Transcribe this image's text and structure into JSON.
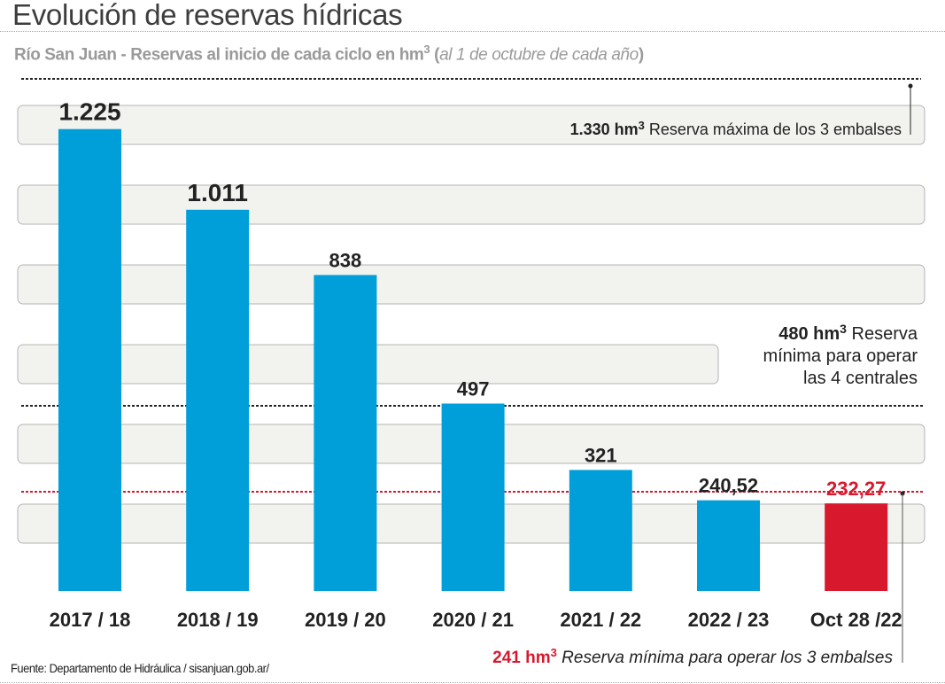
{
  "title": "Evolución de reservas hídricas",
  "subtitle": {
    "bold": "Río San Juan - Reservas al inicio de cada ciclo en hm",
    "sup": "3",
    "open": " (",
    "italic": "al 1 de octubre de cada año",
    "close": ")"
  },
  "footer": "Fuente: Departamento de Hidráulica / sisanjuan.gob.ar/",
  "colors": {
    "bar": "#009fda",
    "highlight": "#d8192d",
    "band": "#f2f2ef",
    "band_border": "#b4b4b4",
    "text": "#222222"
  },
  "chart_data": {
    "type": "bar",
    "title": "Evolución de reservas hídricas",
    "xlabel": "",
    "ylabel": "hm3",
    "ylim": [
      0,
      1330
    ],
    "categories": [
      "2017 / 18",
      "2018 / 19",
      "2019 / 20",
      "2020 / 21",
      "2021 / 22",
      "2022 / 23",
      "Oct 28 /22"
    ],
    "values": [
      1225,
      1011,
      838,
      497,
      321,
      240.52,
      232.27
    ],
    "value_labels": [
      "1.225",
      "1.011",
      "838",
      "497",
      "321",
      "240,52",
      "232,27"
    ],
    "highlight_index": 6,
    "reference_lines": [
      {
        "value": 1330,
        "label_bold": "1.330 hm",
        "sup": "3",
        "label": " Reserva máxima de los 3 embalses",
        "style": "dotted-black"
      },
      {
        "value": 480,
        "label_bold": "480 hm",
        "sup": "3",
        "label_lines": [
          " Reserva",
          "mínima para operar",
          "las 4 centrales"
        ],
        "style": "dotted-black"
      },
      {
        "value": 241,
        "label_bold": "241 hm",
        "sup": "3",
        "label": " Reserva mínima para operar los 3 embalses",
        "style": "dotted-red"
      }
    ],
    "grid": true
  }
}
